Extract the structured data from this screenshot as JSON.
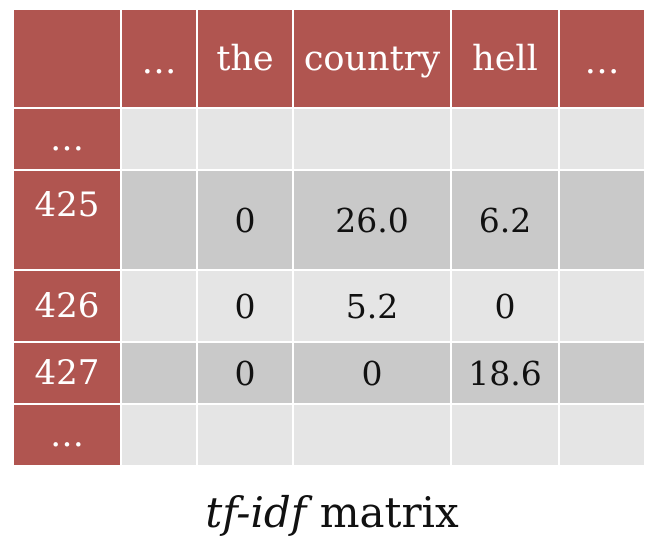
{
  "matrix": {
    "corner": "",
    "columns": [
      "…",
      "the",
      "country",
      "hell",
      "…"
    ],
    "rows": [
      {
        "label": "…",
        "cells": [
          "",
          "",
          "",
          "",
          ""
        ]
      },
      {
        "label": "425",
        "cells": [
          "",
          "0",
          "26.0",
          "6.2",
          ""
        ]
      },
      {
        "label": "426",
        "cells": [
          "",
          "0",
          "5.2",
          "0",
          ""
        ]
      },
      {
        "label": "427",
        "cells": [
          "",
          "0",
          "0",
          "18.6",
          ""
        ]
      },
      {
        "label": "…",
        "cells": [
          "",
          "",
          "",
          "",
          ""
        ]
      }
    ]
  },
  "caption": {
    "italic_part": "tf-idf",
    "rest": " matrix"
  },
  "colors": {
    "header": "#b05550",
    "row_light": "#e5e5e5",
    "row_dark": "#c9c9c9"
  }
}
